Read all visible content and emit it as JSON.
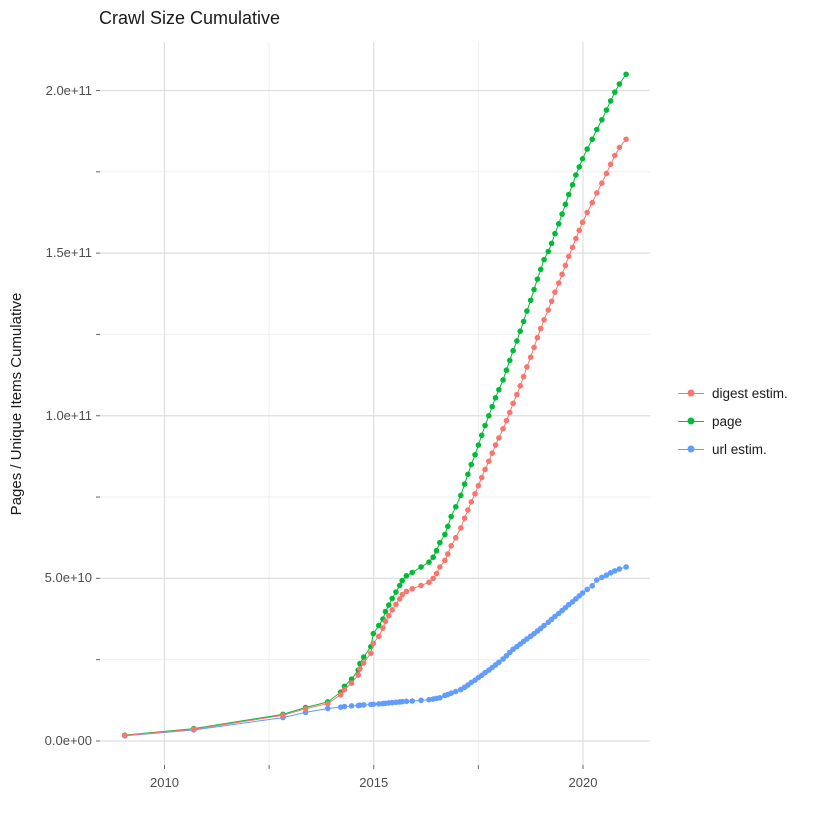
{
  "title": "Crawl Size Cumulative",
  "axes": {
    "y_label": "Pages / Unique Items Cumulative",
    "x_tick_labels": [
      "2010",
      "2015",
      "2020"
    ],
    "y_tick_labels": [
      "0.0e+00",
      "5.0e+10",
      "1.0e+11",
      "1.5e+11",
      "2.0e+11"
    ]
  },
  "legend": {
    "items": [
      {
        "label": "digest estim.",
        "color": "#F8766D"
      },
      {
        "label": "page",
        "color": "#00BA38"
      },
      {
        "label": "url estim.",
        "color": "#619CFF"
      }
    ]
  },
  "colors": {
    "grid_major": "#dedede",
    "grid_minor": "#ededed",
    "tick_mark": "#666666",
    "tick_label": "#4d4d4d"
  },
  "chart_data": {
    "type": "line",
    "title": "Crawl Size Cumulative",
    "xlabel": "",
    "ylabel": "Pages / Unique Items Cumulative",
    "grid": "on",
    "legend_position": "right",
    "xlim": [
      2008.5,
      2021.6
    ],
    "ylim": [
      0,
      215000000000.0
    ],
    "x_major_ticks": [
      2010,
      2015,
      2020
    ],
    "x_minor_ticks": [
      2012.5,
      2017.5
    ],
    "y_major_ticks": [
      0,
      50000000000.0,
      100000000000.0,
      150000000000.0,
      200000000000.0
    ],
    "y_major_tick_labels": [
      "0.0e+00",
      "5.0e+10",
      "1.0e+11",
      "1.5e+11",
      "2.0e+11"
    ],
    "y_minor_ticks": [
      25000000000.0,
      75000000000.0,
      125000000000.0,
      175000000000.0
    ],
    "x_unit": "year (decimal, one point per crawl)",
    "value_unit": "billions of pages / unique items (values_e9 * 1e9)",
    "x": [
      2009.05,
      2010.7,
      2012.83,
      2013.37,
      2013.9,
      2014.21,
      2014.3,
      2014.47,
      2014.63,
      2014.67,
      2014.76,
      2014.93,
      2014.99,
      2015.12,
      2015.22,
      2015.28,
      2015.36,
      2015.44,
      2015.53,
      2015.62,
      2015.68,
      2015.78,
      2015.92,
      2016.13,
      2016.32,
      2016.42,
      2016.5,
      2016.58,
      2016.7,
      2016.77,
      2016.85,
      2016.96,
      2017.08,
      2017.17,
      2017.25,
      2017.33,
      2017.42,
      2017.5,
      2017.58,
      2017.66,
      2017.75,
      2017.83,
      2017.91,
      2017.99,
      2018.09,
      2018.17,
      2018.25,
      2018.33,
      2018.42,
      2018.5,
      2018.58,
      2018.66,
      2018.75,
      2018.83,
      2018.91,
      2018.99,
      2019.07,
      2019.17,
      2019.25,
      2019.33,
      2019.42,
      2019.5,
      2019.58,
      2019.66,
      2019.75,
      2019.83,
      2019.91,
      2019.99,
      2020.1,
      2020.22,
      2020.33,
      2020.45,
      2020.56,
      2020.66,
      2020.76,
      2020.87,
      2021.03
    ],
    "series": [
      {
        "name": "digest estim.",
        "color": "#F8766D",
        "values_e9": [
          1.7,
          3.6,
          7.9,
          9.9,
          11.5,
          14.2,
          15.8,
          17.8,
          20.3,
          22.2,
          24,
          27,
          30,
          32.2,
          34.7,
          36.8,
          38.5,
          40.3,
          42,
          43.7,
          45,
          46,
          46.8,
          47.8,
          48.8,
          50,
          51.5,
          53.5,
          55.5,
          57.5,
          60,
          62.5,
          65.5,
          68.5,
          71,
          73.5,
          76,
          78.5,
          81,
          83.5,
          86,
          88.5,
          91,
          93.2,
          96,
          98.5,
          101,
          103.8,
          106.5,
          109.2,
          112,
          115,
          118,
          121,
          124,
          126.8,
          129.5,
          132.5,
          135.2,
          138,
          140.8,
          143.5,
          146.2,
          149,
          151.8,
          154.5,
          157,
          159.5,
          162.5,
          165.5,
          168.5,
          171.5,
          174.5,
          177.3,
          180,
          182.5,
          185
        ]
      },
      {
        "name": "page",
        "color": "#00BA38",
        "values_e9": [
          1.8,
          3.8,
          8.2,
          10.3,
          12,
          15,
          16.8,
          19,
          21.8,
          23.8,
          25.8,
          29,
          33,
          35.5,
          37.5,
          39.8,
          41.8,
          43.8,
          45.8,
          47.8,
          49.3,
          50.8,
          51.8,
          53.5,
          55,
          56.5,
          58.5,
          61,
          63.5,
          66,
          69,
          72,
          75.5,
          79,
          82,
          85,
          88,
          91,
          94,
          97,
          100,
          102.8,
          105.5,
          108,
          111,
          114,
          117,
          120,
          123,
          126,
          129,
          132.2,
          135.5,
          138.8,
          142,
          145,
          148,
          150.5,
          153,
          156,
          159,
          162,
          165,
          168,
          171,
          174,
          176.5,
          179,
          182,
          185,
          188,
          191,
          194,
          196.8,
          199.5,
          202,
          205
        ]
      },
      {
        "name": "url estim.",
        "color": "#619CFF",
        "values_e9": [
          1.6,
          3.4,
          7.2,
          8.8,
          10,
          10.4,
          10.6,
          10.8,
          10.9,
          11,
          11.1,
          11.2,
          11.3,
          11.4,
          11.5,
          11.6,
          11.7,
          11.8,
          11.9,
          12,
          12.1,
          12.2,
          12.3,
          12.5,
          12.7,
          12.9,
          13.1,
          13.3,
          14,
          14.3,
          14.7,
          15.2,
          15.8,
          16.5,
          17.2,
          18,
          18.7,
          19.5,
          20.2,
          21,
          21.8,
          22.6,
          23.4,
          24.2,
          25.2,
          26.2,
          27.2,
          28.2,
          29,
          29.8,
          30.6,
          31.4,
          32.2,
          33,
          33.8,
          34.6,
          35.5,
          36.5,
          37.4,
          38.3,
          39.2,
          40.1,
          41,
          41.9,
          42.8,
          43.7,
          44.6,
          45.5,
          46.6,
          47.7,
          49.5,
          50.3,
          51,
          51.7,
          52.3,
          52.9,
          53.5
        ]
      }
    ]
  }
}
